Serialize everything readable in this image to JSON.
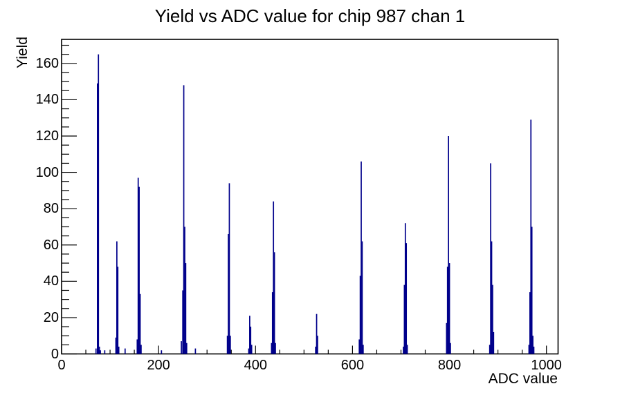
{
  "chart_data": {
    "type": "bar",
    "subtype": "histogram-spectrum",
    "title": "Yield vs ADC value for chip 987 chan 1",
    "xlabel": "ADC value",
    "ylabel": "Yield",
    "xlim": [
      0,
      1024
    ],
    "ylim": [
      0,
      173.25
    ],
    "x_major_ticks": [
      0,
      200,
      400,
      600,
      800,
      1000
    ],
    "x_minor_tick_step": 50,
    "y_major_ticks": [
      0,
      20,
      40,
      60,
      80,
      100,
      120,
      140,
      160
    ],
    "y_minor_tick_step": 5,
    "grid": false,
    "legend": false,
    "bar_color": "#00008b",
    "axis_color": "#000000",
    "background_color": "#ffffff",
    "main_peaks": [
      {
        "adc": 76,
        "yield": 165
      },
      {
        "adc": 114,
        "yield": 62
      },
      {
        "adc": 158,
        "yield": 97
      },
      {
        "adc": 252,
        "yield": 148
      },
      {
        "adc": 346,
        "yield": 94
      },
      {
        "adc": 388,
        "yield": 21
      },
      {
        "adc": 437,
        "yield": 84
      },
      {
        "adc": 526,
        "yield": 22
      },
      {
        "adc": 618,
        "yield": 106
      },
      {
        "adc": 709,
        "yield": 72
      },
      {
        "adc": 798,
        "yield": 120
      },
      {
        "adc": 885,
        "yield": 105
      },
      {
        "adc": 968,
        "yield": 129
      }
    ],
    "bins": [
      {
        "adc": 71,
        "yield": 3
      },
      {
        "adc": 74,
        "yield": 149
      },
      {
        "adc": 76,
        "yield": 165
      },
      {
        "adc": 78,
        "yield": 4
      },
      {
        "adc": 80,
        "yield": 2
      },
      {
        "adc": 89,
        "yield": 2
      },
      {
        "adc": 112,
        "yield": 9
      },
      {
        "adc": 114,
        "yield": 62
      },
      {
        "adc": 116,
        "yield": 48
      },
      {
        "adc": 118,
        "yield": 4
      },
      {
        "adc": 131,
        "yield": 3
      },
      {
        "adc": 156,
        "yield": 8
      },
      {
        "adc": 158,
        "yield": 97
      },
      {
        "adc": 160,
        "yield": 92
      },
      {
        "adc": 162,
        "yield": 33
      },
      {
        "adc": 164,
        "yield": 5
      },
      {
        "adc": 206,
        "yield": 2
      },
      {
        "adc": 247,
        "yield": 7
      },
      {
        "adc": 250,
        "yield": 35
      },
      {
        "adc": 252,
        "yield": 148
      },
      {
        "adc": 254,
        "yield": 70
      },
      {
        "adc": 256,
        "yield": 50
      },
      {
        "adc": 258,
        "yield": 6
      },
      {
        "adc": 276,
        "yield": 3
      },
      {
        "adc": 342,
        "yield": 10
      },
      {
        "adc": 344,
        "yield": 66
      },
      {
        "adc": 346,
        "yield": 94
      },
      {
        "adc": 348,
        "yield": 10
      },
      {
        "adc": 386,
        "yield": 3
      },
      {
        "adc": 388,
        "yield": 21
      },
      {
        "adc": 390,
        "yield": 15
      },
      {
        "adc": 392,
        "yield": 5
      },
      {
        "adc": 433,
        "yield": 6
      },
      {
        "adc": 435,
        "yield": 34
      },
      {
        "adc": 437,
        "yield": 84
      },
      {
        "adc": 439,
        "yield": 56
      },
      {
        "adc": 441,
        "yield": 6
      },
      {
        "adc": 524,
        "yield": 4
      },
      {
        "adc": 526,
        "yield": 22
      },
      {
        "adc": 528,
        "yield": 10
      },
      {
        "adc": 614,
        "yield": 8
      },
      {
        "adc": 616,
        "yield": 43
      },
      {
        "adc": 618,
        "yield": 106
      },
      {
        "adc": 620,
        "yield": 62
      },
      {
        "adc": 622,
        "yield": 5
      },
      {
        "adc": 705,
        "yield": 4
      },
      {
        "adc": 707,
        "yield": 38
      },
      {
        "adc": 709,
        "yield": 72
      },
      {
        "adc": 711,
        "yield": 61
      },
      {
        "adc": 713,
        "yield": 5
      },
      {
        "adc": 794,
        "yield": 17
      },
      {
        "adc": 796,
        "yield": 48
      },
      {
        "adc": 798,
        "yield": 120
      },
      {
        "adc": 800,
        "yield": 50
      },
      {
        "adc": 802,
        "yield": 6
      },
      {
        "adc": 883,
        "yield": 5
      },
      {
        "adc": 885,
        "yield": 105
      },
      {
        "adc": 887,
        "yield": 62
      },
      {
        "adc": 889,
        "yield": 38
      },
      {
        "adc": 891,
        "yield": 12
      },
      {
        "adc": 964,
        "yield": 5
      },
      {
        "adc": 966,
        "yield": 34
      },
      {
        "adc": 968,
        "yield": 129
      },
      {
        "adc": 970,
        "yield": 70
      },
      {
        "adc": 972,
        "yield": 10
      },
      {
        "adc": 974,
        "yield": 4
      }
    ]
  }
}
